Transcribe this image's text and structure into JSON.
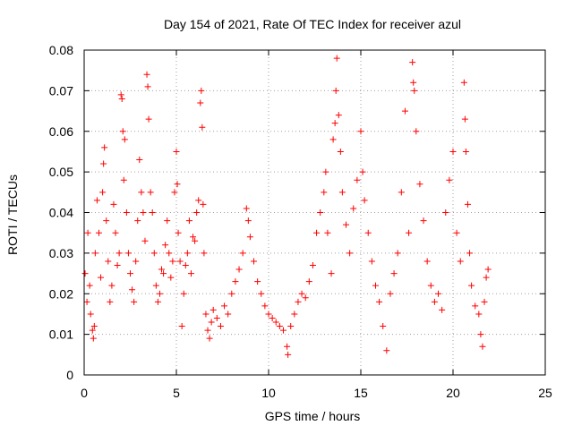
{
  "chart_data": {
    "type": "scatter",
    "title": "Day 154 of 2021, Rate Of TEC Index for receiver azul",
    "xlabel": "GPS time / hours",
    "ylabel": "ROTI / TECUs",
    "xlim": [
      0,
      25
    ],
    "ylim": [
      0,
      0.08
    ],
    "x_ticks": [
      0,
      5,
      10,
      15,
      20,
      25
    ],
    "x_tick_labels": [
      "0",
      "5",
      "10",
      "15",
      "20",
      "25"
    ],
    "y_ticks": [
      0,
      0.01,
      0.02,
      0.03,
      0.04,
      0.05,
      0.06,
      0.07,
      0.08
    ],
    "y_tick_labels": [
      "0",
      "0.01",
      "0.02",
      "0.03",
      "0.04",
      "0.05",
      "0.06",
      "0.07",
      "0.08"
    ],
    "grid": true,
    "grid_style": "dotted",
    "marker": "plus",
    "marker_color": "#ff0000",
    "series": [
      {
        "color": "#ff0000",
        "points": [
          [
            0.05,
            0.025
          ],
          [
            0.15,
            0.018
          ],
          [
            0.2,
            0.035
          ],
          [
            0.3,
            0.022
          ],
          [
            0.35,
            0.015
          ],
          [
            0.45,
            0.011
          ],
          [
            0.5,
            0.009
          ],
          [
            0.55,
            0.012
          ],
          [
            0.6,
            0.03
          ],
          [
            0.7,
            0.043
          ],
          [
            0.8,
            0.035
          ],
          [
            0.9,
            0.024
          ],
          [
            1.0,
            0.045
          ],
          [
            1.05,
            0.052
          ],
          [
            1.1,
            0.056
          ],
          [
            1.2,
            0.038
          ],
          [
            1.3,
            0.028
          ],
          [
            1.4,
            0.018
          ],
          [
            1.5,
            0.022
          ],
          [
            1.6,
            0.042
          ],
          [
            1.7,
            0.035
          ],
          [
            1.8,
            0.027
          ],
          [
            1.9,
            0.03
          ],
          [
            2.0,
            0.069
          ],
          [
            2.05,
            0.068
          ],
          [
            2.1,
            0.06
          ],
          [
            2.15,
            0.048
          ],
          [
            2.2,
            0.058
          ],
          [
            2.3,
            0.04
          ],
          [
            2.4,
            0.03
          ],
          [
            2.5,
            0.025
          ],
          [
            2.6,
            0.021
          ],
          [
            2.7,
            0.018
          ],
          [
            2.8,
            0.028
          ],
          [
            2.9,
            0.038
          ],
          [
            3.0,
            0.053
          ],
          [
            3.1,
            0.045
          ],
          [
            3.2,
            0.04
          ],
          [
            3.3,
            0.033
          ],
          [
            3.4,
            0.074
          ],
          [
            3.45,
            0.071
          ],
          [
            3.5,
            0.063
          ],
          [
            3.6,
            0.045
          ],
          [
            3.7,
            0.04
          ],
          [
            3.8,
            0.03
          ],
          [
            3.9,
            0.022
          ],
          [
            4.0,
            0.018
          ],
          [
            4.1,
            0.02
          ],
          [
            4.2,
            0.026
          ],
          [
            4.3,
            0.025
          ],
          [
            4.4,
            0.032
          ],
          [
            4.5,
            0.038
          ],
          [
            4.6,
            0.03
          ],
          [
            4.7,
            0.024
          ],
          [
            4.8,
            0.028
          ],
          [
            4.9,
            0.045
          ],
          [
            5.0,
            0.055
          ],
          [
            5.05,
            0.047
          ],
          [
            5.1,
            0.035
          ],
          [
            5.2,
            0.028
          ],
          [
            5.3,
            0.012
          ],
          [
            5.4,
            0.02
          ],
          [
            5.5,
            0.027
          ],
          [
            5.6,
            0.03
          ],
          [
            5.7,
            0.038
          ],
          [
            5.8,
            0.025
          ],
          [
            5.9,
            0.034
          ],
          [
            6.0,
            0.033
          ],
          [
            6.1,
            0.04
          ],
          [
            6.2,
            0.043
          ],
          [
            6.3,
            0.067
          ],
          [
            6.35,
            0.07
          ],
          [
            6.4,
            0.061
          ],
          [
            6.45,
            0.042
          ],
          [
            6.5,
            0.03
          ],
          [
            6.6,
            0.015
          ],
          [
            6.7,
            0.011
          ],
          [
            6.8,
            0.009
          ],
          [
            6.9,
            0.013
          ],
          [
            7.0,
            0.016
          ],
          [
            7.2,
            0.014
          ],
          [
            7.4,
            0.012
          ],
          [
            7.6,
            0.017
          ],
          [
            7.8,
            0.015
          ],
          [
            8.0,
            0.02
          ],
          [
            8.2,
            0.023
          ],
          [
            8.4,
            0.026
          ],
          [
            8.6,
            0.03
          ],
          [
            8.8,
            0.041
          ],
          [
            8.9,
            0.038
          ],
          [
            9.0,
            0.034
          ],
          [
            9.2,
            0.028
          ],
          [
            9.4,
            0.023
          ],
          [
            9.6,
            0.02
          ],
          [
            9.8,
            0.017
          ],
          [
            10.0,
            0.015
          ],
          [
            10.2,
            0.014
          ],
          [
            10.4,
            0.013
          ],
          [
            10.6,
            0.012
          ],
          [
            10.8,
            0.011
          ],
          [
            11.0,
            0.007
          ],
          [
            11.05,
            0.005
          ],
          [
            11.2,
            0.012
          ],
          [
            11.4,
            0.015
          ],
          [
            11.6,
            0.018
          ],
          [
            11.8,
            0.02
          ],
          [
            12.0,
            0.019
          ],
          [
            12.2,
            0.023
          ],
          [
            12.4,
            0.027
          ],
          [
            12.6,
            0.035
          ],
          [
            12.8,
            0.04
          ],
          [
            13.0,
            0.045
          ],
          [
            13.1,
            0.05
          ],
          [
            13.2,
            0.035
          ],
          [
            13.4,
            0.025
          ],
          [
            13.5,
            0.058
          ],
          [
            13.6,
            0.062
          ],
          [
            13.65,
            0.07
          ],
          [
            13.7,
            0.078
          ],
          [
            13.8,
            0.064
          ],
          [
            13.9,
            0.055
          ],
          [
            14.0,
            0.045
          ],
          [
            14.2,
            0.037
          ],
          [
            14.4,
            0.03
          ],
          [
            14.6,
            0.041
          ],
          [
            14.8,
            0.048
          ],
          [
            15.0,
            0.06
          ],
          [
            15.1,
            0.05
          ],
          [
            15.2,
            0.043
          ],
          [
            15.4,
            0.035
          ],
          [
            15.6,
            0.028
          ],
          [
            15.8,
            0.022
          ],
          [
            16.0,
            0.018
          ],
          [
            16.2,
            0.012
          ],
          [
            16.4,
            0.006
          ],
          [
            16.6,
            0.02
          ],
          [
            16.8,
            0.025
          ],
          [
            17.0,
            0.03
          ],
          [
            17.2,
            0.045
          ],
          [
            17.4,
            0.065
          ],
          [
            17.6,
            0.035
          ],
          [
            17.8,
            0.077
          ],
          [
            17.85,
            0.072
          ],
          [
            17.9,
            0.07
          ],
          [
            18.0,
            0.06
          ],
          [
            18.2,
            0.047
          ],
          [
            18.4,
            0.038
          ],
          [
            18.6,
            0.028
          ],
          [
            18.8,
            0.022
          ],
          [
            19.0,
            0.018
          ],
          [
            19.2,
            0.02
          ],
          [
            19.4,
            0.016
          ],
          [
            19.6,
            0.04
          ],
          [
            19.8,
            0.048
          ],
          [
            20.0,
            0.055
          ],
          [
            20.2,
            0.035
          ],
          [
            20.4,
            0.028
          ],
          [
            20.6,
            0.072
          ],
          [
            20.65,
            0.063
          ],
          [
            20.7,
            0.055
          ],
          [
            20.8,
            0.042
          ],
          [
            20.9,
            0.03
          ],
          [
            21.0,
            0.022
          ],
          [
            21.2,
            0.017
          ],
          [
            21.4,
            0.015
          ],
          [
            21.5,
            0.01
          ],
          [
            21.6,
            0.007
          ],
          [
            21.7,
            0.018
          ],
          [
            21.8,
            0.024
          ],
          [
            21.9,
            0.026
          ]
        ]
      }
    ]
  }
}
